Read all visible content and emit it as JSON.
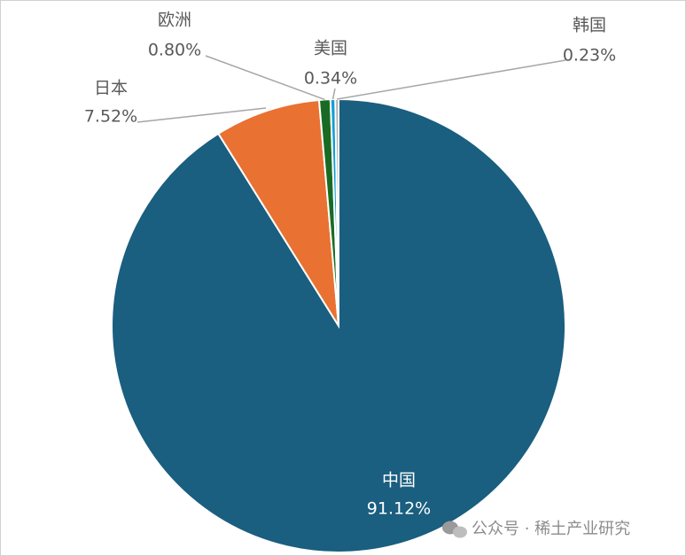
{
  "chart_data": {
    "type": "pie",
    "categories": [
      "中国",
      "日本",
      "欧洲",
      "美国",
      "韩国"
    ],
    "values": [
      91.12,
      7.52,
      0.8,
      0.34,
      0.23
    ],
    "value_labels": [
      "91.12%",
      "7.52%",
      "0.80%",
      "0.34%",
      "0.23%"
    ],
    "colors": [
      "#1a5e80",
      "#e97132",
      "#196b24",
      "#0f9ed5",
      "#a6a6a6"
    ],
    "watermark": "公众号 · 稀土产业研究"
  }
}
